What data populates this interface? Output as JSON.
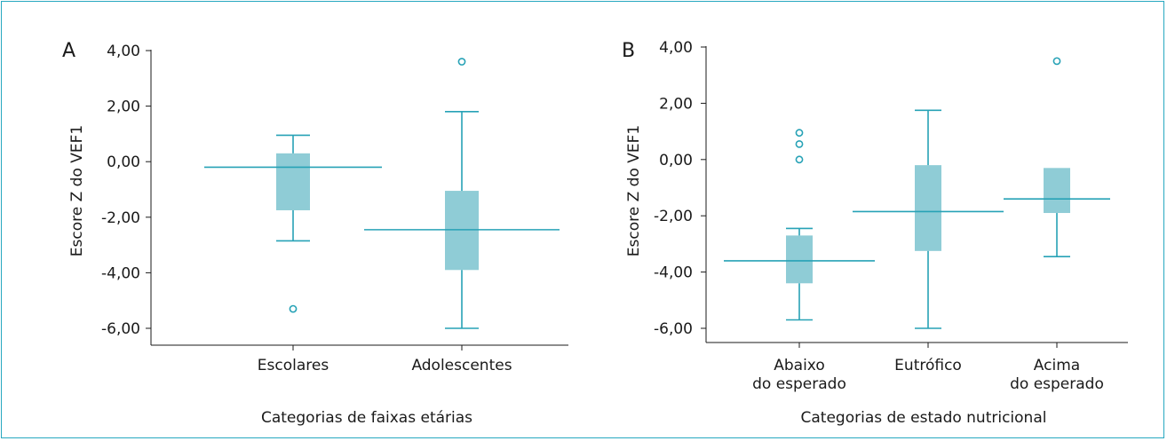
{
  "chart_data": [
    {
      "panel_label": "A",
      "type": "box",
      "xlabel": "Categorias de faixas etárias",
      "ylabel": "Escore Z do VEF1",
      "ylim": [
        -6.6,
        4.2
      ],
      "yticks": [
        4,
        2,
        0,
        -2,
        -4,
        -6
      ],
      "ytick_labels": [
        "4,00",
        "2,00",
        "0,00",
        "-2,00",
        "-4,00",
        "-6,00"
      ],
      "categories": [
        {
          "label_lines": [
            "Escolares"
          ],
          "whisker_low": -2.85,
          "q1": -1.75,
          "median": -0.2,
          "q3": 0.3,
          "whisker_high": 0.95,
          "outliers": [
            -5.3
          ]
        },
        {
          "label_lines": [
            "Adolescentes"
          ],
          "whisker_low": -6.0,
          "q1": -3.9,
          "median": -2.45,
          "q3": -1.05,
          "whisker_high": 1.8,
          "outliers": [
            3.6
          ]
        }
      ]
    },
    {
      "panel_label": "B",
      "type": "box",
      "xlabel": "Categorias de estado nutricional",
      "ylabel": "Escore Z do VEF1",
      "ylim": [
        -6.6,
        4.2
      ],
      "yticks": [
        4,
        2,
        0,
        -2,
        -4,
        -6
      ],
      "ytick_labels": [
        "4,00",
        "2,00",
        "0,00",
        "-2,00",
        "-4,00",
        "-6,00"
      ],
      "categories": [
        {
          "label_lines": [
            "Abaixo",
            "do esperado"
          ],
          "whisker_low": -5.7,
          "q1": -4.4,
          "median": -3.6,
          "q3": -2.7,
          "whisker_high": -2.45,
          "outliers": [
            0.95,
            0.55,
            0.0
          ]
        },
        {
          "label_lines": [
            "Eutrófico"
          ],
          "whisker_low": -6.0,
          "q1": -3.25,
          "median": -1.85,
          "q3": -0.2,
          "whisker_high": 1.75,
          "outliers": []
        },
        {
          "label_lines": [
            "Acima",
            "do esperado"
          ],
          "whisker_low": -3.45,
          "q1": -1.9,
          "median": -1.4,
          "q3": -0.3,
          "whisker_high": null,
          "outliers": [
            3.5
          ]
        }
      ]
    }
  ],
  "colors": {
    "box": "#8fccd6",
    "line": "#27a2b6",
    "border": "#27a8c0"
  }
}
